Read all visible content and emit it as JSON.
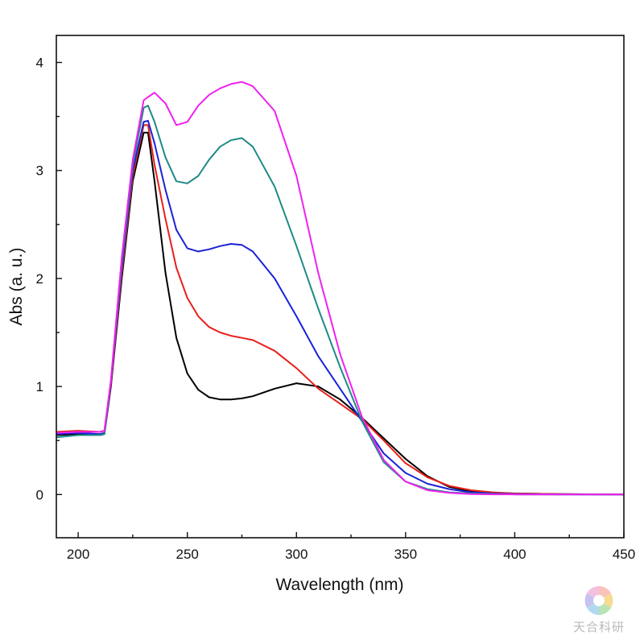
{
  "chart_data": {
    "type": "line",
    "xlabel": "Wavelength (nm)",
    "ylabel": "Abs (a. u.)",
    "xlim": [
      190,
      450
    ],
    "ylim": [
      -0.4,
      4.25
    ],
    "xticks": [
      200,
      250,
      300,
      350,
      400,
      450
    ],
    "yticks": [
      0,
      1,
      2,
      3,
      4
    ],
    "grid": false,
    "legend": "none",
    "series": [
      {
        "color": "#000000",
        "x": [
          190,
          200,
          210,
          212,
          215,
          220,
          225,
          230,
          232,
          235,
          240,
          245,
          250,
          255,
          260,
          265,
          270,
          275,
          280,
          290,
          300,
          310,
          320,
          330,
          340,
          350,
          360,
          370,
          380,
          390,
          400,
          420,
          450
        ],
        "y": [
          0.55,
          0.56,
          0.55,
          0.56,
          1.0,
          2.0,
          2.9,
          3.35,
          3.35,
          2.9,
          2.05,
          1.45,
          1.12,
          0.97,
          0.9,
          0.88,
          0.88,
          0.89,
          0.91,
          0.98,
          1.03,
          1.0,
          0.88,
          0.71,
          0.52,
          0.33,
          0.17,
          0.07,
          0.03,
          0.015,
          0.01,
          0.005,
          0.0
        ]
      },
      {
        "color": "#e8201a",
        "x": [
          190,
          200,
          210,
          212,
          215,
          220,
          225,
          230,
          232,
          235,
          240,
          245,
          250,
          255,
          260,
          265,
          270,
          275,
          280,
          290,
          300,
          310,
          320,
          330,
          340,
          350,
          360,
          370,
          380,
          390,
          400,
          420,
          450
        ],
        "y": [
          0.58,
          0.59,
          0.58,
          0.59,
          1.02,
          2.05,
          2.95,
          3.42,
          3.42,
          3.05,
          2.55,
          2.1,
          1.82,
          1.65,
          1.55,
          1.5,
          1.47,
          1.45,
          1.43,
          1.33,
          1.17,
          0.98,
          0.84,
          0.7,
          0.5,
          0.29,
          0.16,
          0.08,
          0.04,
          0.02,
          0.01,
          0.005,
          0.0
        ]
      },
      {
        "color": "#1a22d8",
        "x": [
          190,
          200,
          210,
          212,
          215,
          220,
          225,
          230,
          232,
          235,
          240,
          245,
          250,
          255,
          260,
          265,
          270,
          275,
          280,
          290,
          300,
          310,
          320,
          330,
          340,
          350,
          360,
          370,
          380,
          390,
          400,
          420,
          450
        ],
        "y": [
          0.56,
          0.57,
          0.56,
          0.57,
          1.04,
          2.1,
          3.0,
          3.45,
          3.46,
          3.25,
          2.82,
          2.45,
          2.28,
          2.25,
          2.27,
          2.3,
          2.32,
          2.31,
          2.25,
          2.0,
          1.65,
          1.28,
          0.98,
          0.68,
          0.38,
          0.2,
          0.1,
          0.05,
          0.02,
          0.01,
          0.005,
          0.002,
          0.0
        ]
      },
      {
        "color": "#1f8a86",
        "x": [
          190,
          200,
          210,
          212,
          215,
          220,
          225,
          230,
          232,
          235,
          240,
          245,
          250,
          255,
          260,
          265,
          270,
          275,
          280,
          290,
          300,
          310,
          320,
          330,
          340,
          350,
          360,
          370,
          380,
          390,
          400,
          420,
          450
        ],
        "y": [
          0.53,
          0.55,
          0.55,
          0.56,
          1.05,
          2.15,
          3.05,
          3.58,
          3.6,
          3.45,
          3.12,
          2.9,
          2.88,
          2.95,
          3.1,
          3.22,
          3.28,
          3.3,
          3.22,
          2.85,
          2.3,
          1.72,
          1.18,
          0.68,
          0.3,
          0.12,
          0.05,
          0.02,
          0.01,
          0.005,
          0.002,
          0.001,
          0.0
        ]
      },
      {
        "color": "#f020f0",
        "x": [
          190,
          200,
          210,
          212,
          215,
          220,
          225,
          230,
          232,
          235,
          240,
          245,
          250,
          255,
          260,
          265,
          270,
          275,
          280,
          290,
          300,
          310,
          320,
          330,
          340,
          350,
          360,
          370,
          380,
          390,
          400,
          420,
          450
        ],
        "y": [
          0.57,
          0.58,
          0.58,
          0.59,
          1.06,
          2.2,
          3.1,
          3.65,
          3.68,
          3.72,
          3.62,
          3.42,
          3.45,
          3.6,
          3.7,
          3.76,
          3.8,
          3.82,
          3.78,
          3.55,
          2.95,
          2.05,
          1.3,
          0.72,
          0.32,
          0.12,
          0.04,
          0.015,
          0.005,
          0.002,
          0.001,
          0.0,
          0.0
        ]
      }
    ]
  },
  "watermark": {
    "text": "天合科研"
  }
}
